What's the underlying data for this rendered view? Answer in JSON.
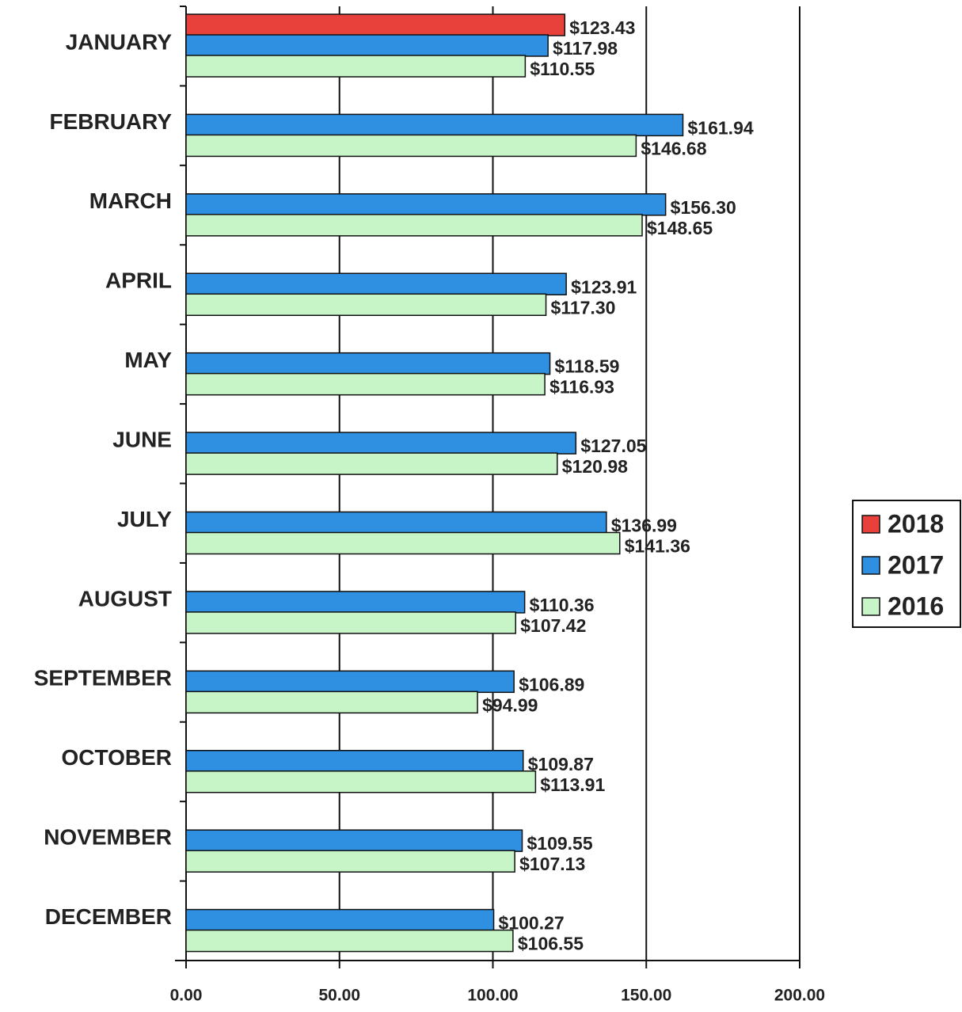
{
  "chart_data": {
    "type": "hbar",
    "categories": [
      "JANUARY",
      "FEBRUARY",
      "MARCH",
      "APRIL",
      "MAY",
      "JUNE",
      "JULY",
      "AUGUST",
      "SEPTEMBER",
      "OCTOBER",
      "NOVEMBER",
      "DECEMBER"
    ],
    "series": [
      {
        "name": "2018",
        "color": "#e8413c",
        "values": [
          123.43,
          null,
          null,
          null,
          null,
          null,
          null,
          null,
          null,
          null,
          null,
          null
        ],
        "value_labels": [
          "$123.43",
          null,
          null,
          null,
          null,
          null,
          null,
          null,
          null,
          null,
          null,
          null
        ]
      },
      {
        "name": "2017",
        "color": "#2f8fe0",
        "values": [
          117.98,
          161.94,
          156.3,
          123.91,
          118.59,
          127.05,
          136.99,
          110.36,
          106.89,
          109.87,
          109.55,
          100.27
        ],
        "value_labels": [
          "$117.98",
          "$161.94",
          "$156.30",
          "$123.91",
          "$118.59",
          "$127.05",
          "$136.99",
          "$110.36",
          "$106.89",
          "$109.87",
          "$109.55",
          "$100.27"
        ]
      },
      {
        "name": "2016",
        "color": "#c8f5c8",
        "values": [
          110.55,
          146.68,
          148.65,
          117.3,
          116.93,
          120.98,
          141.36,
          107.42,
          94.99,
          113.91,
          107.13,
          106.55
        ],
        "value_labels": [
          "$110.55",
          "$146.68",
          "$148.65",
          "$117.30",
          "$116.93",
          "$120.98",
          "$141.36",
          "$107.42",
          "$94.99",
          "$113.91",
          "$107.13",
          "$106.55"
        ]
      }
    ],
    "xlim": [
      0,
      200
    ],
    "xticks": [
      {
        "value": 0,
        "label": "0.00"
      },
      {
        "value": 50,
        "label": "50.00"
      },
      {
        "value": 100,
        "label": "100.00"
      },
      {
        "value": 150,
        "label": "150.00"
      },
      {
        "value": 200,
        "label": "200.00"
      }
    ],
    "grid": true,
    "legend": "right"
  }
}
